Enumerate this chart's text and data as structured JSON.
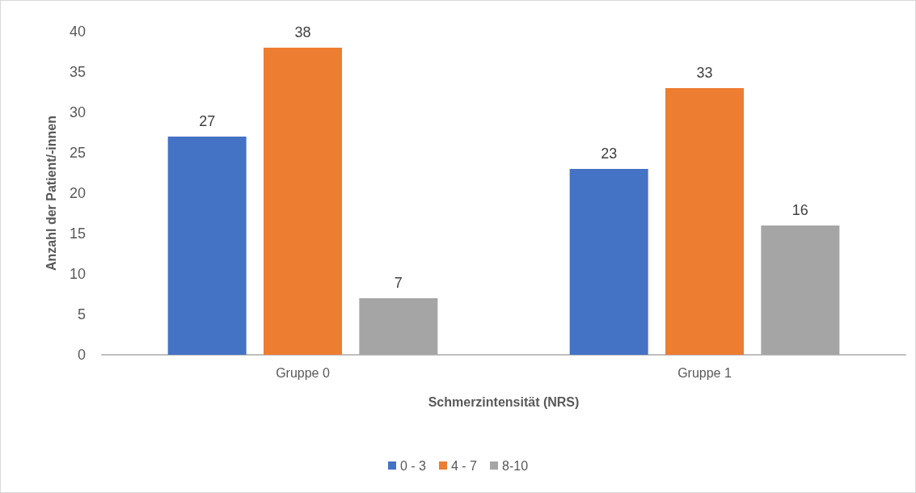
{
  "chart_data": {
    "type": "bar",
    "xlabel": "Schmerzintensität (NRS)",
    "ylabel": "Anzahl der Patient/-innen",
    "categories": [
      "Gruppe 0",
      "Gruppe 1"
    ],
    "series": [
      {
        "name": "0 - 3",
        "color": "#4472c4",
        "values": [
          27,
          23
        ]
      },
      {
        "name": "4 - 7",
        "color": "#ed7d31",
        "values": [
          38,
          33
        ]
      },
      {
        "name": "8-10",
        "color": "#a5a5a5",
        "values": [
          7,
          16
        ]
      }
    ],
    "ylim": [
      0,
      40
    ],
    "yticks": [
      0,
      5,
      10,
      15,
      20,
      25,
      30,
      35,
      40
    ],
    "grid": false,
    "legend": "bottom",
    "data_labels": true
  }
}
